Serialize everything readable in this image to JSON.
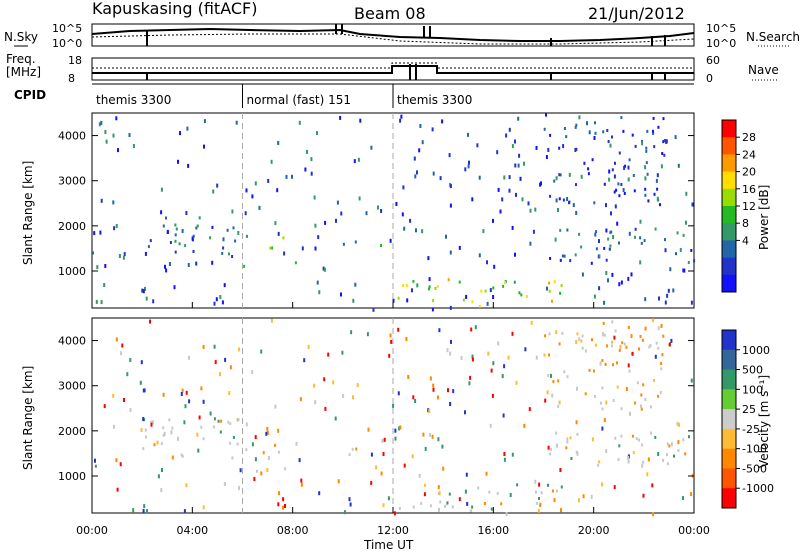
{
  "header": {
    "station": "Kapuskasing (fitACF)",
    "beam": "Beam 08",
    "date": "21/Jun/2012"
  },
  "noise_panel": {
    "left_label": "N.Sky",
    "right_label": "N.Search",
    "left_ticks": [
      "10^5",
      "10^0"
    ],
    "right_ticks": [
      "10^5",
      "10^0"
    ]
  },
  "freq_panel": {
    "left_label_line1": "Freq.",
    "left_label_line2": "[MHz]",
    "right_label": "Nave",
    "left_ticks": [
      "18",
      "8"
    ],
    "right_ticks": [
      "60",
      "0"
    ]
  },
  "cpid": {
    "label": "CPID",
    "segments": [
      {
        "text": "themis 3300",
        "start_hour": 0
      },
      {
        "text": "normal (fast) 151",
        "start_hour": 6
      },
      {
        "text": "themis 3300",
        "start_hour": 12
      }
    ]
  },
  "colorbars": {
    "power": {
      "title": "Power [dB]",
      "labels": [
        "28",
        "24",
        "20",
        "16",
        "12",
        "8",
        "4"
      ],
      "colors": [
        "#ff0000",
        "#ff5500",
        "#ff9900",
        "#ffdd00",
        "#99dd00",
        "#22bb22",
        "#339966",
        "#2266aa",
        "#2233cc",
        "#1111ff"
      ]
    },
    "velocity": {
      "title": "Velocity [m s⁻¹]",
      "labels": [
        "1000",
        "500",
        "100",
        "25",
        "-25",
        "-100",
        "-500",
        "-1000"
      ],
      "colors": [
        "#2233cc",
        "#336699",
        "#339966",
        "#66cc33",
        "#cccccc",
        "#ffbb33",
        "#ff8800",
        "#ff5500",
        "#ff0000"
      ]
    }
  },
  "chart_data": [
    {
      "type": "heatmap",
      "name": "power",
      "ylabel": "Slant Range [km]",
      "xlabel": "Time UT",
      "xlim": [
        0,
        24
      ],
      "ylim": [
        180,
        4500
      ],
      "yticks": [
        1000,
        2000,
        3000,
        4000
      ],
      "xticks": [
        "00:00",
        "04:00",
        "08:00",
        "12:00",
        "16:00",
        "20:00",
        "00:00"
      ],
      "regions": [
        {
          "t": [
            0,
            0.5
          ],
          "r": [
            1250,
            1450
          ],
          "level": 8
        },
        {
          "t": [
            2.0,
            5.9
          ],
          "r": [
            1300,
            2300
          ],
          "level": 6
        },
        {
          "t": [
            6.0,
            7.8
          ],
          "r": [
            1500,
            1800
          ],
          "level": 12
        },
        {
          "t": [
            6.0,
            8.3
          ],
          "r": [
            1100,
            1250
          ],
          "level": 16
        },
        {
          "t": [
            10.0,
            12.0
          ],
          "r": [
            1500,
            1700
          ],
          "level": 10
        },
        {
          "t": [
            12.0,
            19.0
          ],
          "r": [
            250,
            850
          ],
          "level": 16
        },
        {
          "t": [
            18.0,
            24.0
          ],
          "r": [
            1200,
            2000
          ],
          "level": 6
        },
        {
          "t": [
            18.0,
            23.0
          ],
          "r": [
            2500,
            4500
          ],
          "level": 4
        }
      ]
    },
    {
      "type": "heatmap",
      "name": "velocity",
      "ylabel": "Slant Range [km]",
      "xlabel": "Time UT",
      "xlim": [
        0,
        24
      ],
      "ylim": [
        180,
        4500
      ],
      "yticks": [
        1000,
        2000,
        3000,
        4000
      ],
      "xticks": [
        "00:00",
        "04:00",
        "08:00",
        "12:00",
        "16:00",
        "20:00",
        "00:00"
      ],
      "regions": [
        {
          "t": [
            0,
            0.5
          ],
          "r": [
            1250,
            1450
          ],
          "vel": 0
        },
        {
          "t": [
            2.0,
            5.9
          ],
          "r": [
            1300,
            2300
          ],
          "vel": 0
        },
        {
          "t": [
            6.0,
            7.8
          ],
          "r": [
            1500,
            1800
          ],
          "vel": 0
        },
        {
          "t": [
            6.0,
            8.3
          ],
          "r": [
            1100,
            1250
          ],
          "vel": 0
        },
        {
          "t": [
            10.0,
            12.0
          ],
          "r": [
            1500,
            1700
          ],
          "vel": 0
        },
        {
          "t": [
            12.0,
            19.0
          ],
          "r": [
            250,
            850
          ],
          "vel": 0
        },
        {
          "t": [
            18.0,
            24.0
          ],
          "r": [
            1200,
            2000
          ],
          "vel": 0
        },
        {
          "t": [
            18.0,
            23.0
          ],
          "r": [
            2500,
            4500
          ],
          "vel": -100
        }
      ]
    }
  ]
}
